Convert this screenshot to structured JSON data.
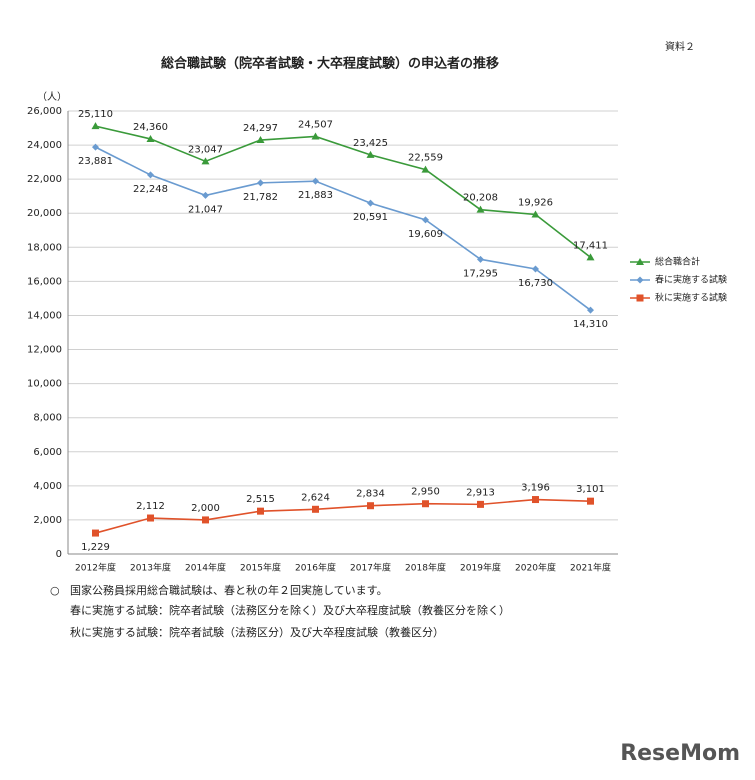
{
  "header": {
    "doc_id": "資料２"
  },
  "chart_data": {
    "type": "line",
    "title": "総合職試験（院卒者試験・大卒程度試験）の申込者の推移",
    "y_unit": "（人）",
    "categories": [
      "2012年度",
      "2013年度",
      "2014年度",
      "2015年度",
      "2016年度",
      "2017年度",
      "2018年度",
      "2019年度",
      "2020年度",
      "2021年度"
    ],
    "series": [
      {
        "name": "総合職合計",
        "color": "#3a9a3a",
        "marker": "triangle",
        "values": [
          25110,
          24360,
          23047,
          24297,
          24507,
          23425,
          22559,
          20208,
          19926,
          17411
        ],
        "value_labels": [
          "25,110",
          "24,360",
          "23,047",
          "24,297",
          "24,507",
          "23,425",
          "22,559",
          "20,208",
          "19,926",
          "17,411"
        ]
      },
      {
        "name": "春に実施する試験",
        "color": "#6a9bd0",
        "marker": "diamond",
        "values": [
          23881,
          22248,
          21047,
          21782,
          21883,
          20591,
          19609,
          17295,
          16730,
          14310
        ],
        "value_labels": [
          "23,881",
          "22,248",
          "21,047",
          "21,782",
          "21,883",
          "20,591",
          "19,609",
          "17,295",
          "16,730",
          "14,310"
        ]
      },
      {
        "name": "秋に実施する試験",
        "color": "#e0522a",
        "marker": "square",
        "values": [
          1229,
          2112,
          2000,
          2515,
          2624,
          2834,
          2950,
          2913,
          3196,
          3101
        ],
        "value_labels": [
          "1,229",
          "2,112",
          "2,000",
          "2,515",
          "2,624",
          "2,834",
          "2,950",
          "2,913",
          "3,196",
          "3,101"
        ]
      }
    ],
    "ylim": [
      0,
      26000
    ],
    "yticks": [
      0,
      {
        "value": 2000,
        "label": "2,000"
      },
      {
        "value": 4000,
        "label": "4,000"
      },
      {
        "value": 6000,
        "label": "6,000"
      },
      {
        "value": 8000,
        "label": "8,000"
      },
      {
        "value": 10000,
        "label": "10,000"
      },
      {
        "value": 12000,
        "label": "12,000"
      },
      {
        "value": 14000,
        "label": "14,000"
      },
      {
        "value": 16000,
        "label": "16,000"
      },
      {
        "value": 18000,
        "label": "18,000"
      },
      {
        "value": 20000,
        "label": "20,000"
      },
      {
        "value": 22000,
        "label": "22,000"
      },
      {
        "value": 24000,
        "label": "24,000"
      },
      {
        "value": 26000,
        "label": "26,000"
      }
    ],
    "grid": true
  },
  "notes": {
    "bullet": "○",
    "lines": [
      "国家公務員採用総合職試験は、春と秋の年２回実施しています。",
      "春に実施する試験：院卒者試験（法務区分を除く）及び大卒程度試験（教養区分を除く）",
      "秋に実施する試験：院卒者試験（法務区分）及び大卒程度試験（教養区分）"
    ]
  },
  "watermark": "ReseMom"
}
